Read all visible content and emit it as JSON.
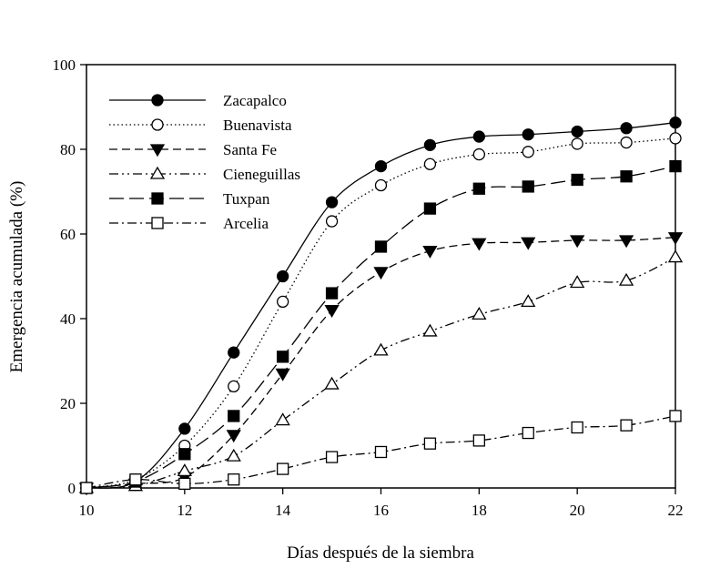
{
  "chart_data": {
    "type": "line",
    "xlabel": "Días después de la siembra",
    "ylabel": "Emergencia acumulada (%)",
    "xlim": [
      10,
      22
    ],
    "ylim": [
      0,
      100
    ],
    "xticks": [
      10,
      12,
      14,
      16,
      18,
      20,
      22
    ],
    "yticks": [
      0,
      20,
      40,
      60,
      80,
      100
    ],
    "grid": false,
    "legend_position": "top-left",
    "x": [
      10,
      11,
      12,
      13,
      14,
      15,
      16,
      17,
      18,
      19,
      20,
      21,
      22
    ],
    "series": [
      {
        "name": "Zacapalco",
        "marker": "filled-circle",
        "line": "solid",
        "values": [
          0,
          1.5,
          14,
          32,
          50,
          67.5,
          76,
          81,
          83,
          83.5,
          84.2,
          85,
          86.3
        ]
      },
      {
        "name": "Buenavista",
        "marker": "open-circle",
        "line": "dotted",
        "values": [
          0,
          2,
          10,
          24,
          44,
          63,
          71.5,
          76.5,
          78.8,
          79.4,
          81.3,
          81.6,
          82.6
        ]
      },
      {
        "name": "Santa Fe",
        "marker": "filled-triangle-down",
        "line": "dashed",
        "values": [
          0,
          1,
          2.5,
          12.5,
          27,
          42,
          51,
          56,
          57.8,
          58,
          58.5,
          58.5,
          59.2
        ]
      },
      {
        "name": "Cieneguillas",
        "marker": "open-triangle-up",
        "line": "dash-dot-dot",
        "values": [
          0,
          0.5,
          4,
          7.5,
          16,
          24.5,
          32.5,
          37,
          41,
          44,
          48.5,
          49,
          54.5
        ]
      },
      {
        "name": "Tuxpan",
        "marker": "filled-square",
        "line": "long-dash",
        "values": [
          0,
          1.5,
          8,
          17,
          31,
          46,
          57,
          66,
          70.7,
          71.2,
          72.8,
          73.6,
          76
        ]
      },
      {
        "name": "Arcelia",
        "marker": "open-square",
        "line": "dash-dot",
        "values": [
          0,
          2,
          1,
          2,
          4.5,
          7.3,
          8.5,
          10.5,
          11.2,
          13,
          14.3,
          14.8,
          17
        ]
      }
    ]
  }
}
